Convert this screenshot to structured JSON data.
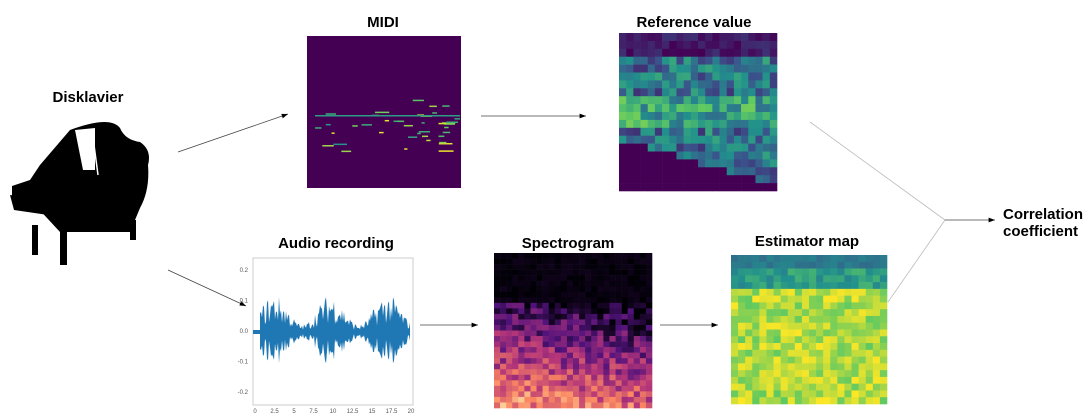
{
  "nodes": {
    "disklavier": {
      "label": "Disklavier"
    },
    "midi": {
      "label": "MIDI"
    },
    "reference": {
      "label": "Reference value"
    },
    "audio": {
      "label": "Audio recording"
    },
    "spectrogram": {
      "label": "Spectrogram"
    },
    "estimator": {
      "label": "Estimator map"
    },
    "correlation": {
      "label": "Correlation coefficient"
    }
  },
  "audio_axes": {
    "yticks": [
      "0.2",
      "0.1",
      "0.0",
      "-0.1",
      "-0.2"
    ],
    "xticks": [
      "0",
      "2.5",
      "5",
      "7.5",
      "10",
      "12.5",
      "15",
      "17.5",
      "20"
    ]
  }
}
